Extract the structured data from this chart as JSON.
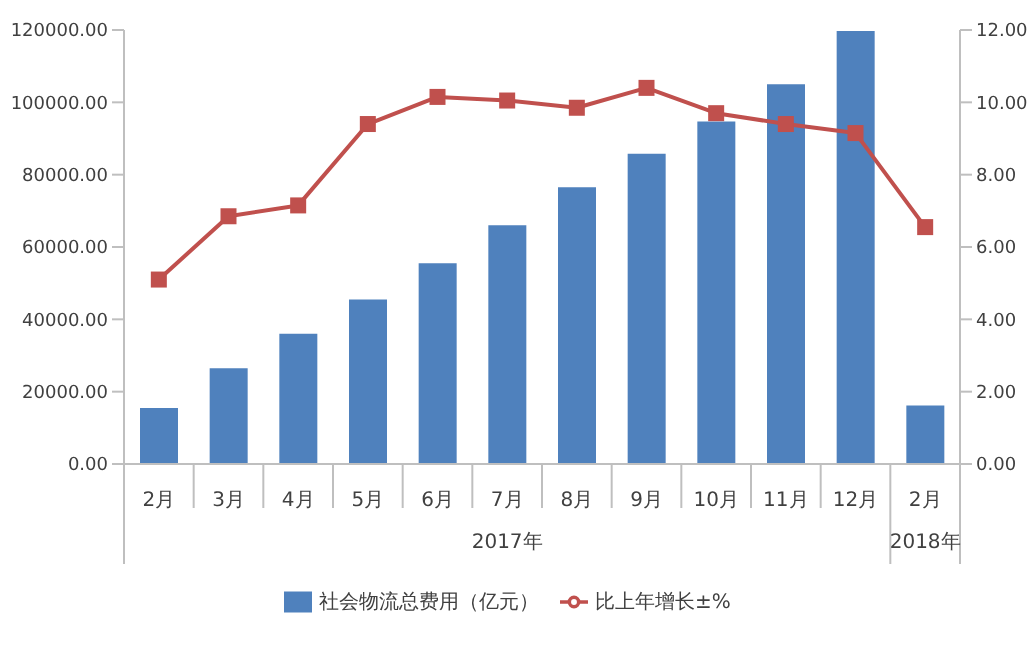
{
  "chart_data": {
    "type": "bar",
    "categories": [
      "2月",
      "3月",
      "4月",
      "5月",
      "6月",
      "7月",
      "8月",
      "9月",
      "10月",
      "11月",
      "12月",
      "2月"
    ],
    "series": [
      {
        "name": "社会物流总费用（亿元）",
        "color": "#4f81bd",
        "values": [
          15500,
          26500,
          36000,
          45500,
          55500,
          66000,
          76500,
          85800,
          94700,
          105000,
          119700,
          16200
        ]
      },
      {
        "name": "比上年增长±%",
        "type": "line",
        "axis": "y2",
        "color": "#c0504d",
        "marker": "square",
        "values": [
          5.1,
          6.85,
          7.15,
          9.4,
          10.15,
          10.05,
          9.85,
          10.4,
          9.7,
          9.4,
          9.15,
          6.55
        ]
      }
    ],
    "annotations": [
      "2017年",
      "2018年"
    ],
    "ylim": [
      0,
      120000
    ],
    "yticks": [
      {
        "value": 0,
        "label": "0.00"
      },
      {
        "value": 20000,
        "label": "20000.00"
      },
      {
        "value": 40000,
        "label": "40000.00"
      },
      {
        "value": 60000,
        "label": "60000.00"
      },
      {
        "value": 80000,
        "label": "80000.00"
      },
      {
        "value": 100000,
        "label": "100000.00"
      },
      {
        "value": 120000,
        "label": "120000.00"
      }
    ],
    "y2lim": [
      0,
      12
    ],
    "y2ticks": [
      {
        "value": 0,
        "label": "0.00"
      },
      {
        "value": 2,
        "label": "2.00"
      },
      {
        "value": 4,
        "label": "4.00"
      },
      {
        "value": 6,
        "label": "6.00"
      },
      {
        "value": 8,
        "label": "8.00"
      },
      {
        "value": 10,
        "label": "10.00"
      },
      {
        "value": 12,
        "label": "12.00"
      }
    ],
    "grid": false,
    "legend": "bottom"
  }
}
